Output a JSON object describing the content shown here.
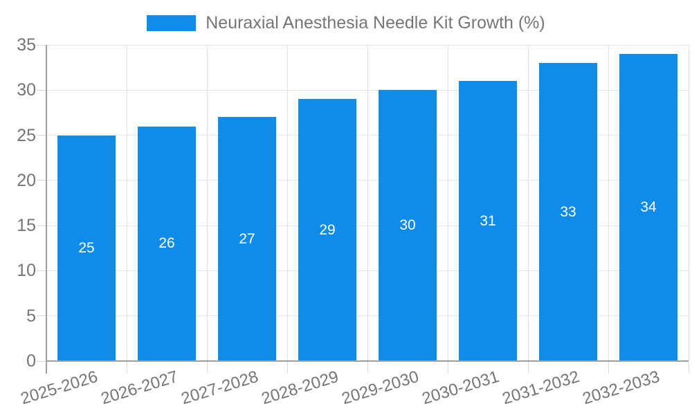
{
  "chart_data": {
    "type": "bar",
    "title": "Neuraxial Anesthesia Needle Kit Growth (%)",
    "categories": [
      "2025-2026",
      "2026-2027",
      "2027-2028",
      "2028-2029",
      "2029-2030",
      "2030-2031",
      "2031-2032",
      "2032-2033"
    ],
    "values": [
      25,
      26,
      27,
      29,
      30,
      31,
      33,
      34
    ],
    "xlabel": "",
    "ylabel": "",
    "ylim": [
      0,
      35
    ],
    "yticks": [
      0,
      5,
      10,
      15,
      20,
      25,
      30,
      35
    ],
    "grid": true,
    "legend_position": "top",
    "value_labels_inside_bars": true
  },
  "colors": {
    "bar": "#0e8ce8",
    "axis_text": "#757575",
    "value_label": "#ffffff",
    "gridline": "#e3e3e3",
    "tick": "#d9d9d9",
    "axis_line": "#9e9e9e",
    "background": "#ffffff"
  }
}
